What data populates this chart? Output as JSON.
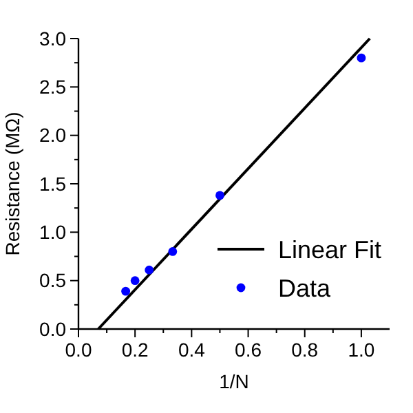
{
  "chart_data": {
    "type": "scatter",
    "xlabel": "1/N",
    "ylabel": "Resistance (MΩ)",
    "xlim": [
      0,
      1.1
    ],
    "ylim": [
      0,
      3.0
    ],
    "xticks": [
      {
        "value": 0,
        "label": "0.0"
      },
      {
        "value": 0.1,
        "label": null
      },
      {
        "value": 0.2,
        "label": "0.2"
      },
      {
        "value": 0.3,
        "label": null
      },
      {
        "value": 0.4,
        "label": "0.4"
      },
      {
        "value": 0.5,
        "label": null
      },
      {
        "value": 0.6,
        "label": "0.6"
      },
      {
        "value": 0.7,
        "label": null
      },
      {
        "value": 0.8,
        "label": "0.8"
      },
      {
        "value": 0.9,
        "label": null
      },
      {
        "value": 1.0,
        "label": "1.0"
      }
    ],
    "yticks": [
      {
        "value": 0,
        "label": "0.0"
      },
      {
        "value": 0.25,
        "label": null
      },
      {
        "value": 0.5,
        "label": "0.5"
      },
      {
        "value": 0.75,
        "label": null
      },
      {
        "value": 1.0,
        "label": "1.0"
      },
      {
        "value": 1.25,
        "label": null
      },
      {
        "value": 1.5,
        "label": "1.5"
      },
      {
        "value": 1.75,
        "label": null
      },
      {
        "value": 2.0,
        "label": "2.0"
      },
      {
        "value": 2.25,
        "label": null
      },
      {
        "value": 2.5,
        "label": "2.5"
      },
      {
        "value": 2.75,
        "label": null
      },
      {
        "value": 3.0,
        "label": "3.0"
      }
    ],
    "legend": "bottom right",
    "grid": false,
    "series": [
      {
        "name": "Linear Fit",
        "type": "line",
        "color": "#000000",
        "marker": "none",
        "line_style": "solid",
        "x": [
          0.07,
          1.03
        ],
        "values": [
          0,
          3.0
        ]
      },
      {
        "name": "Data",
        "type": "scatter",
        "color": "#0000ff",
        "marker": "circle",
        "x": [
          0.167,
          0.2,
          0.25,
          0.333,
          0.5,
          1.0
        ],
        "values": [
          0.39,
          0.5,
          0.61,
          0.8,
          1.38,
          2.8
        ]
      }
    ]
  }
}
